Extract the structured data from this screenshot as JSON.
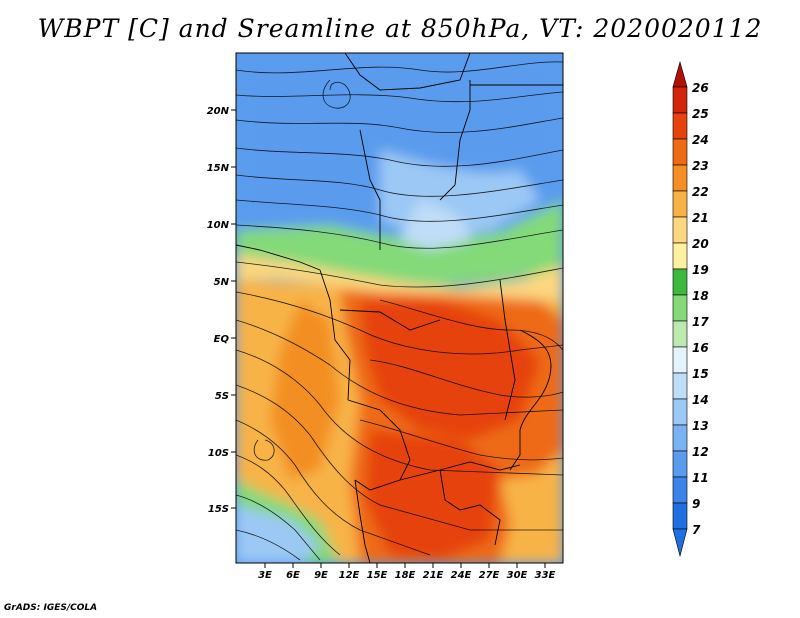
{
  "title": "WBPT [C] and Sreamline at 850hPa, VT: 2020020112",
  "footer": "GrADS: IGES/COLA",
  "map": {
    "lat_ticks": [
      "20N",
      "15N",
      "10N",
      "5N",
      "EQ",
      "5S",
      "10S",
      "15S"
    ],
    "lon_ticks": [
      "3E",
      "6E",
      "9E",
      "12E",
      "15E",
      "18E",
      "21E",
      "24E",
      "27E",
      "30E",
      "33E"
    ]
  },
  "colorbar": {
    "labels": [
      "7",
      "9",
      "11",
      "12",
      "13",
      "14",
      "15",
      "16",
      "17",
      "18",
      "19",
      "20",
      "21",
      "22",
      "23",
      "24",
      "25",
      "26"
    ],
    "colors": [
      "#1f6fe0",
      "#3b85e8",
      "#5a9bee",
      "#7ab2f2",
      "#9cc8f5",
      "#c0ddf8",
      "#e3f2fb",
      "#bde9b0",
      "#84d979",
      "#3cb93c",
      "#fff0a0",
      "#fcd780",
      "#f8b347",
      "#f38f24",
      "#ee6a14",
      "#e6420e",
      "#d02508",
      "#b01006"
    ]
  }
}
